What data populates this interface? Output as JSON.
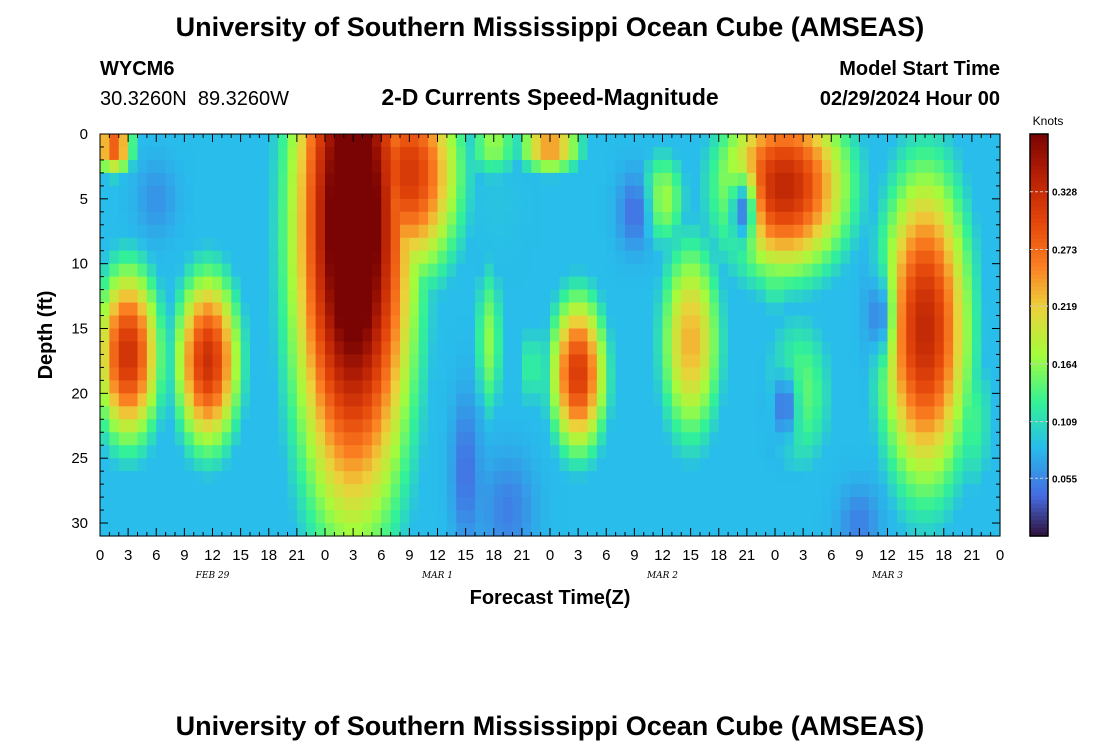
{
  "header": {
    "title": "University of Southern Mississippi Ocean Cube (AMSEAS)",
    "station_id": "WYCM6",
    "coordinates": "30.3260N  89.3260W",
    "subtitle": "2-D Currents Speed-Magnitude",
    "model_start_label": "Model Start Time",
    "model_start_value": "02/29/2024 Hour 00"
  },
  "footer": {
    "title": "University of Southern Mississippi Ocean Cube (AMSEAS)"
  },
  "colors": {
    "low": "#30123b",
    "mid_blue": "#3c8bf2",
    "cyan": "#1be4b6",
    "green": "#a4fc3c",
    "yellow": "#fbb938",
    "orange": "#e4460a",
    "high": "#7a0403"
  },
  "chart_data": {
    "type": "heatmap",
    "title": "2-D Currents Speed-Magnitude",
    "xlabel": "Forecast Time(Z)",
    "ylabel": "Depth (ft)",
    "x_range_hours": [
      0,
      96
    ],
    "y_range_ft": [
      0,
      31
    ],
    "x_tick_labels": [
      "0",
      "3",
      "6",
      "9",
      "12",
      "15",
      "18",
      "21",
      "0",
      "3",
      "6",
      "9",
      "12",
      "15",
      "18",
      "21",
      "0",
      "3",
      "6",
      "9",
      "12",
      "15",
      "18",
      "21",
      "0",
      "3",
      "6",
      "9",
      "12",
      "15",
      "18",
      "21",
      "0"
    ],
    "y_ticks": [
      0,
      5,
      10,
      15,
      20,
      25,
      30
    ],
    "y_tick_labels": [
      "0",
      "5",
      "10",
      "15",
      "20",
      "25",
      "30"
    ],
    "day_labels": [
      {
        "label": "FEB 29",
        "hour": 12
      },
      {
        "label": "MAR 1",
        "hour": 36
      },
      {
        "label": "MAR 2",
        "hour": 60
      },
      {
        "label": "MAR 3",
        "hour": 84
      }
    ],
    "colorbar": {
      "unit": "Knots",
      "min": 0.0,
      "max": 0.383,
      "tick_values": [
        0.328,
        0.273,
        0.219,
        0.164,
        0.109,
        0.055
      ],
      "tick_labels": [
        "0.328",
        "0.273",
        "0.219",
        "0.164",
        "0.109",
        "0.055"
      ]
    },
    "depth_bins_ft": [
      0,
      1,
      2,
      3,
      4,
      5,
      6,
      7,
      8,
      9,
      10,
      11,
      12,
      13,
      14,
      15,
      16,
      17,
      18,
      19,
      20,
      21,
      22,
      23,
      24,
      25,
      26,
      27,
      28,
      29,
      30
    ],
    "speed_blobs_note": "Approximate gridded speed (knots) reconstructed from features: [hour_center, depth_center, hour_sigma, depth_sigma, amplitude]",
    "speed_blobs": [
      [
        1.5,
        1,
        1.5,
        1.5,
        0.26
      ],
      [
        3,
        17,
        2.5,
        5,
        0.29
      ],
      [
        11.5,
        17.5,
        2.5,
        5,
        0.29
      ],
      [
        27,
        7,
        4.5,
        16,
        0.41
      ],
      [
        33,
        3,
        4,
        6,
        0.28
      ],
      [
        42,
        1,
        2,
        2,
        0.14
      ],
      [
        48,
        1,
        2.5,
        1.5,
        0.22
      ],
      [
        41.5,
        16,
        1.2,
        5,
        0.13
      ],
      [
        51,
        18.5,
        2.2,
        4.5,
        0.28
      ],
      [
        46,
        18,
        1,
        3,
        0.1
      ],
      [
        63,
        16,
        2.5,
        6,
        0.2
      ],
      [
        60,
        5,
        2,
        3,
        0.14
      ],
      [
        73,
        4,
        5,
        5,
        0.3
      ],
      [
        72,
        10,
        2,
        3,
        0.12
      ],
      [
        74.5,
        20,
        3,
        5,
        0.12
      ],
      [
        88,
        15,
        3.5,
        9,
        0.3
      ],
      [
        93,
        22,
        2,
        5,
        0.1
      ]
    ],
    "speed_lows": [
      [
        6,
        5,
        1.5,
        2,
        0.06
      ],
      [
        42.5,
        5.5,
        1.5,
        2,
        0.09
      ],
      [
        43.5,
        29,
        2,
        3,
        0.05
      ],
      [
        57,
        6,
        1.2,
        2,
        0.04
      ],
      [
        68.5,
        6,
        1,
        2,
        0.05
      ],
      [
        73,
        21,
        1,
        2,
        0.04
      ],
      [
        83,
        14,
        1,
        2.5,
        0.05
      ],
      [
        81,
        30,
        1.5,
        2,
        0.05
      ],
      [
        39,
        26,
        1,
        4,
        0.04
      ]
    ],
    "base_speed": 0.085
  }
}
